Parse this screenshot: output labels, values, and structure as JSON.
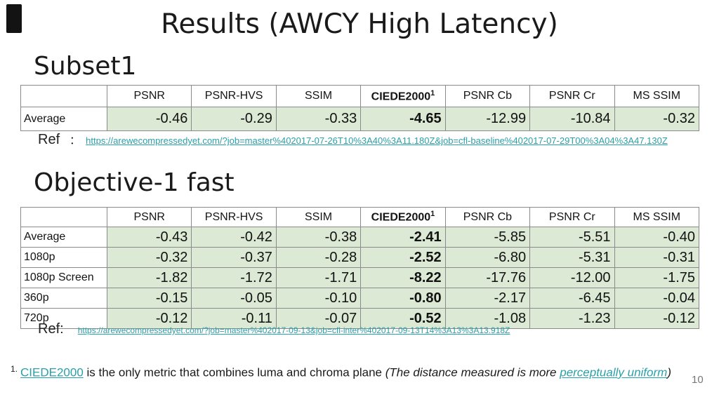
{
  "slide": {
    "title": "Results (AWCY High Latency)",
    "page_number": "10"
  },
  "colors": {
    "link_teal": "#2aa0a8",
    "value_cell_green": "#dbe9d5",
    "table_border_gray": "#8a8a8a",
    "page_number_gray": "#777777",
    "corner_marker_black": "#131313"
  },
  "sections": [
    {
      "heading": "Subset1",
      "ref_label": "Ref",
      "ref_separator": "：",
      "ref_url": "https://arewecompressedyet.com/?job=master%402017-07-26T10%3A40%3A11.180Z&job=cfl-baseline%402017-07-29T00%3A04%3A47.130Z",
      "table": {
        "columns": [
          "",
          "PSNR",
          "PSNR-HVS",
          "SSIM",
          "CIEDE2000",
          "PSNR Cb",
          "PSNR Cr",
          "MS SSIM"
        ],
        "superscript": "1",
        "rows": [
          {
            "label": "Average",
            "values": [
              "-0.46",
              "-0.29",
              "-0.33",
              "-4.65",
              "-12.99",
              "-10.84",
              "-0.32"
            ]
          }
        ]
      }
    },
    {
      "heading": "Objective-1 fast",
      "ref_label": "Ref:",
      "ref_separator": "",
      "ref_url": "https://arewecompressedyet.com/?job=master%402017-09-13&job=cfl-inter%402017-09-13T14%3A13%3A13.918Z",
      "table": {
        "columns": [
          "",
          "PSNR",
          "PSNR-HVS",
          "SSIM",
          "CIEDE2000",
          "PSNR Cb",
          "PSNR Cr",
          "MS SSIM"
        ],
        "superscript": "1",
        "rows": [
          {
            "label": "Average",
            "values": [
              "-0.43",
              "-0.42",
              "-0.38",
              "-2.41",
              "-5.85",
              "-5.51",
              "-0.40"
            ]
          },
          {
            "label": "1080p",
            "values": [
              "-0.32",
              "-0.37",
              "-0.28",
              "-2.52",
              "-6.80",
              "-5.31",
              "-0.31"
            ]
          },
          {
            "label": "1080p Screen",
            "values": [
              "-1.82",
              "-1.72",
              "-1.71",
              "-8.22",
              "-17.76",
              "-12.00",
              "-1.75"
            ]
          },
          {
            "label": "360p",
            "values": [
              "-0.15",
              "-0.05",
              "-0.10",
              "-0.80",
              "-2.17",
              "-6.45",
              "-0.04"
            ]
          },
          {
            "label": "720p",
            "values": [
              "-0.12",
              "-0.11",
              "-0.07",
              "-0.52",
              "-1.08",
              "-1.23",
              "-0.12"
            ]
          }
        ]
      }
    }
  ],
  "footnote": {
    "marker": "1.",
    "link_ciede": "CIEDE2000",
    "text_plain": " is the only metric that combines luma and chroma plane ",
    "text_italic": "(The distance measured is more ",
    "link_uniform": "perceptually uniform",
    "text_close": ")"
  }
}
